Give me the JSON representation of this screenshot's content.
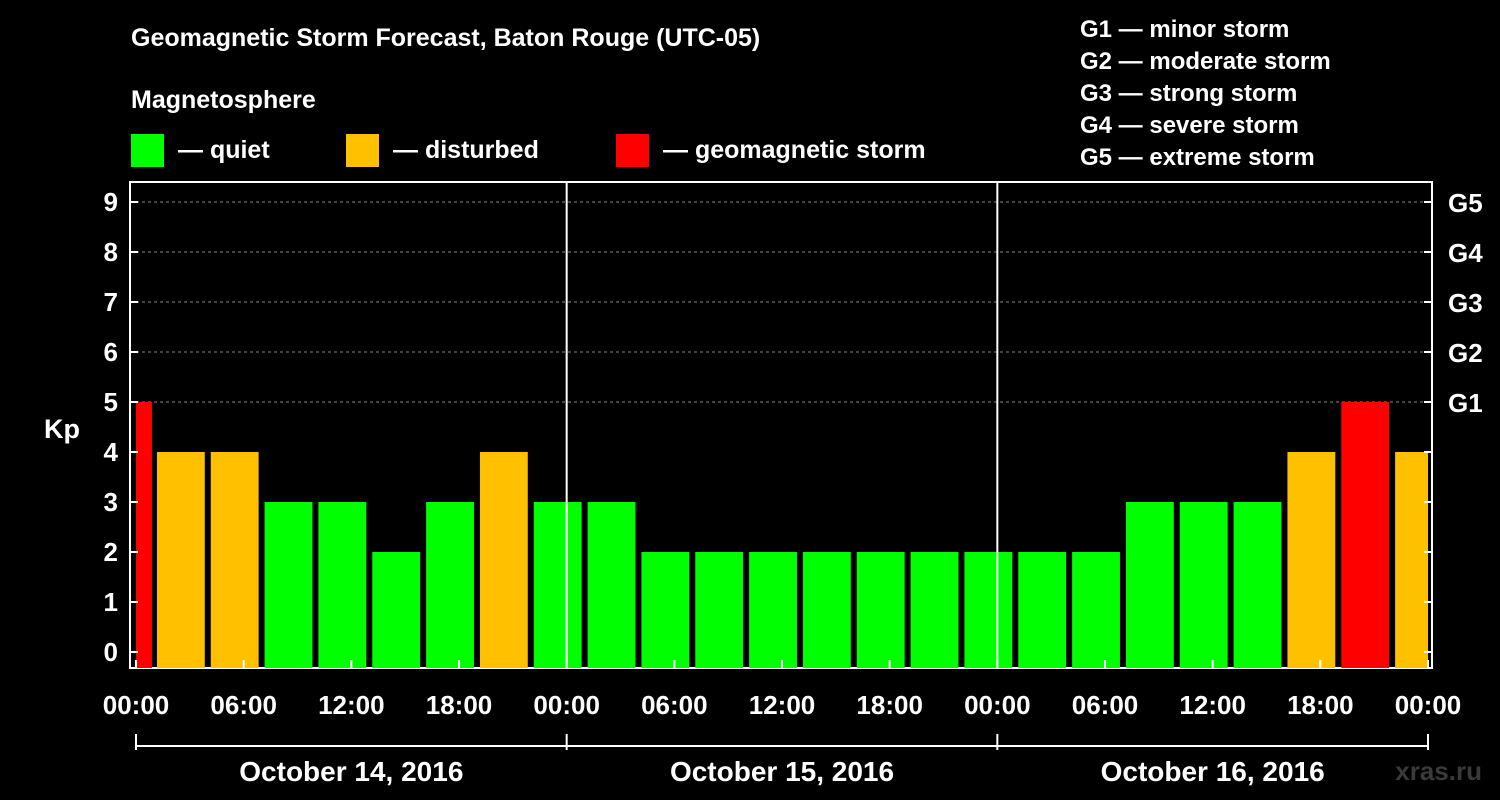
{
  "title": "Geomagnetic Storm Forecast, Baton Rouge (UTC-05)",
  "legend": {
    "heading": "Magnetosphere",
    "items": [
      {
        "label": "— quiet",
        "color": "#00ff00"
      },
      {
        "label": "— disturbed",
        "color": "#ffc000"
      },
      {
        "label": "— geomagnetic storm",
        "color": "#ff0000"
      }
    ]
  },
  "storm_levels": [
    "G1 — minor storm",
    "G2 — moderate storm",
    "G3 — strong storm",
    "G4 — severe storm",
    "G5 — extreme storm"
  ],
  "watermark": "xras.ru",
  "chart_data": {
    "type": "bar",
    "ylabel": "Kp",
    "ylim": [
      0,
      9
    ],
    "yticks": [
      "0",
      "1",
      "2",
      "3",
      "4",
      "5",
      "6",
      "7",
      "8",
      "9"
    ],
    "right_ticks": [
      {
        "kp": 5,
        "label": "G1"
      },
      {
        "kp": 6,
        "label": "G2"
      },
      {
        "kp": 7,
        "label": "G3"
      },
      {
        "kp": 8,
        "label": "G4"
      },
      {
        "kp": 9,
        "label": "G5"
      }
    ],
    "grid": "dashed horizontal at Kp 5-9",
    "xtick_labels": [
      "00:00",
      "06:00",
      "12:00",
      "18:00",
      "00:00",
      "06:00",
      "12:00",
      "18:00",
      "00:00",
      "06:00",
      "12:00",
      "18:00",
      "00:00"
    ],
    "days": [
      "October 14, 2016",
      "October 15, 2016",
      "October 16, 2016"
    ],
    "categories": [
      "Oct 14 00:00",
      "Oct 14 03:00",
      "Oct 14 06:00",
      "Oct 14 09:00",
      "Oct 14 12:00",
      "Oct 14 15:00",
      "Oct 14 18:00",
      "Oct 14 21:00",
      "Oct 15 00:00",
      "Oct 15 03:00",
      "Oct 15 06:00",
      "Oct 15 09:00",
      "Oct 15 12:00",
      "Oct 15 15:00",
      "Oct 15 18:00",
      "Oct 15 21:00",
      "Oct 16 00:00",
      "Oct 16 03:00",
      "Oct 16 06:00",
      "Oct 16 09:00",
      "Oct 16 12:00",
      "Oct 16 15:00",
      "Oct 16 18:00",
      "Oct 16 21:00"
    ],
    "first_bar_partial": {
      "kp": 5,
      "status": "storm"
    },
    "last_bar_partial": {
      "kp": 4,
      "status": "disturbed"
    },
    "values": [
      4,
      4,
      3,
      3,
      2,
      3,
      4,
      3,
      3,
      2,
      2,
      2,
      2,
      2,
      2,
      2,
      2,
      2,
      3,
      3,
      3,
      4,
      5,
      4
    ],
    "status": [
      "disturbed",
      "disturbed",
      "quiet",
      "quiet",
      "quiet",
      "quiet",
      "disturbed",
      "quiet",
      "quiet",
      "quiet",
      "quiet",
      "quiet",
      "quiet",
      "quiet",
      "quiet",
      "quiet",
      "quiet",
      "quiet",
      "quiet",
      "quiet",
      "quiet",
      "disturbed",
      "storm",
      "disturbed"
    ]
  }
}
